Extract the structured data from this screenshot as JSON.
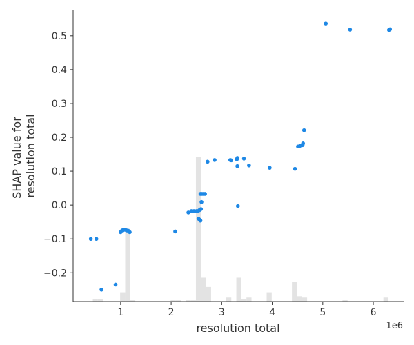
{
  "chart_data": {
    "type": "scatter",
    "xlabel": "resolution total",
    "ylabel_lines": [
      "SHAP value for",
      "resolution total"
    ],
    "x_offset_label": "1e6",
    "x_scale": 1000000,
    "xlim": [
      60000,
      6600000
    ],
    "ylim": [
      -0.285,
      0.575
    ],
    "x_ticks": [
      1000000,
      2000000,
      3000000,
      4000000,
      5000000,
      6000000
    ],
    "x_tick_labels": [
      "1",
      "2",
      "3",
      "4",
      "5",
      "6"
    ],
    "y_ticks": [
      -0.2,
      -0.1,
      0.0,
      0.1,
      0.2,
      0.3,
      0.4,
      0.5
    ],
    "y_tick_labels": [
      "−0.2",
      "−0.1",
      "0.0",
      "0.1",
      "0.2",
      "0.3",
      "0.4",
      "0.5"
    ],
    "point_color": "#1E88E5",
    "hist_color": "#e3e3e3",
    "axis_color": "#333333",
    "histogram": {
      "bin_width": 100000,
      "bins": [
        {
          "x0": 450000,
          "count": 2
        },
        {
          "x0": 550000,
          "count": 2
        },
        {
          "x0": 990000,
          "count": 7
        },
        {
          "x0": 1090000,
          "count": 55
        },
        {
          "x0": 1190000,
          "count": 1
        },
        {
          "x0": 1990000,
          "count": 1
        },
        {
          "x0": 2090000,
          "count": 1
        },
        {
          "x0": 2290000,
          "count": 1
        },
        {
          "x0": 2390000,
          "count": 1
        },
        {
          "x0": 2490000,
          "count": 109
        },
        {
          "x0": 2590000,
          "count": 18
        },
        {
          "x0": 2690000,
          "count": 11
        },
        {
          "x0": 3090000,
          "count": 3
        },
        {
          "x0": 3290000,
          "count": 18
        },
        {
          "x0": 3390000,
          "count": 2
        },
        {
          "x0": 3490000,
          "count": 3
        },
        {
          "x0": 3890000,
          "count": 7
        },
        {
          "x0": 4390000,
          "count": 15
        },
        {
          "x0": 4490000,
          "count": 4
        },
        {
          "x0": 4590000,
          "count": 3
        },
        {
          "x0": 5390000,
          "count": 1
        },
        {
          "x0": 6200000,
          "count": 3
        }
      ],
      "max_count": 110,
      "max_height_fraction": 0.5
    },
    "points": [
      {
        "x": 410000,
        "y": -0.1
      },
      {
        "x": 520000,
        "y": -0.1
      },
      {
        "x": 620000,
        "y": -0.25
      },
      {
        "x": 900000,
        "y": -0.235
      },
      {
        "x": 1000000,
        "y": -0.08
      },
      {
        "x": 1030000,
        "y": -0.075
      },
      {
        "x": 1060000,
        "y": -0.073
      },
      {
        "x": 1090000,
        "y": -0.073
      },
      {
        "x": 1120000,
        "y": -0.075
      },
      {
        "x": 1150000,
        "y": -0.076
      },
      {
        "x": 1180000,
        "y": -0.08
      },
      {
        "x": 2080000,
        "y": -0.078
      },
      {
        "x": 2340000,
        "y": -0.022
      },
      {
        "x": 2400000,
        "y": -0.018
      },
      {
        "x": 2450000,
        "y": -0.018
      },
      {
        "x": 2500000,
        "y": -0.018
      },
      {
        "x": 2530000,
        "y": -0.018
      },
      {
        "x": 2560000,
        "y": -0.015
      },
      {
        "x": 2590000,
        "y": -0.012
      },
      {
        "x": 2540000,
        "y": -0.04
      },
      {
        "x": 2560000,
        "y": -0.043
      },
      {
        "x": 2580000,
        "y": -0.046
      },
      {
        "x": 2600000,
        "y": 0.009
      },
      {
        "x": 2580000,
        "y": 0.033
      },
      {
        "x": 2610000,
        "y": 0.033
      },
      {
        "x": 2640000,
        "y": 0.033
      },
      {
        "x": 2670000,
        "y": 0.033
      },
      {
        "x": 2720000,
        "y": 0.128
      },
      {
        "x": 2860000,
        "y": 0.133
      },
      {
        "x": 3170000,
        "y": 0.133
      },
      {
        "x": 3190000,
        "y": 0.132
      },
      {
        "x": 3300000,
        "y": 0.135
      },
      {
        "x": 3310000,
        "y": 0.139
      },
      {
        "x": 3310000,
        "y": 0.115
      },
      {
        "x": 3320000,
        "y": -0.003
      },
      {
        "x": 3440000,
        "y": 0.137
      },
      {
        "x": 3540000,
        "y": 0.117
      },
      {
        "x": 3950000,
        "y": 0.11
      },
      {
        "x": 4450000,
        "y": 0.107
      },
      {
        "x": 4510000,
        "y": 0.173
      },
      {
        "x": 4550000,
        "y": 0.175
      },
      {
        "x": 4600000,
        "y": 0.177
      },
      {
        "x": 4610000,
        "y": 0.182
      },
      {
        "x": 4630000,
        "y": 0.221
      },
      {
        "x": 5060000,
        "y": 0.536
      },
      {
        "x": 5540000,
        "y": 0.518
      },
      {
        "x": 6310000,
        "y": 0.517
      },
      {
        "x": 6330000,
        "y": 0.519
      }
    ]
  }
}
